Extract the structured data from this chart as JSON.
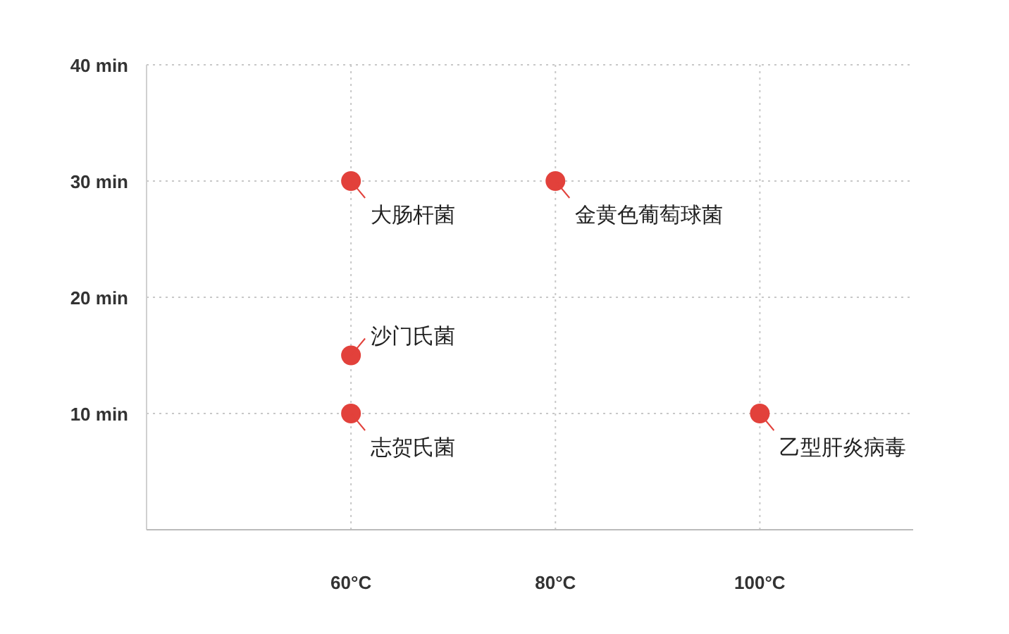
{
  "chart_data": {
    "type": "scatter",
    "xlim": [
      40,
      115
    ],
    "ylim": [
      0,
      40
    ],
    "xticks": [
      {
        "value": 60,
        "label": "60°C"
      },
      {
        "value": 80,
        "label": "80°C"
      },
      {
        "value": 100,
        "label": "100°C"
      }
    ],
    "yticks": [
      {
        "value": 10,
        "label": "10 min"
      },
      {
        "value": 20,
        "label": "20 min"
      },
      {
        "value": 30,
        "label": "30 min"
      },
      {
        "value": 40,
        "label": "40 min"
      }
    ],
    "grid": true,
    "marker": "circle",
    "series": [
      {
        "color": "#e2413b",
        "x": [
          60,
          80,
          60,
          60,
          100
        ],
        "values": [
          30,
          30,
          15,
          10,
          10
        ]
      }
    ],
    "annotations": [
      {
        "text": "大肠杆菌",
        "x": 60,
        "y": 30
      },
      {
        "text": "金黄色葡萄球菌",
        "x": 80,
        "y": 30
      },
      {
        "text": "沙门氏菌",
        "x": 60,
        "y": 15
      },
      {
        "text": "志贺氏菌",
        "x": 60,
        "y": 10
      },
      {
        "text": "乙型肝炎病毒",
        "x": 100,
        "y": 10
      }
    ]
  }
}
